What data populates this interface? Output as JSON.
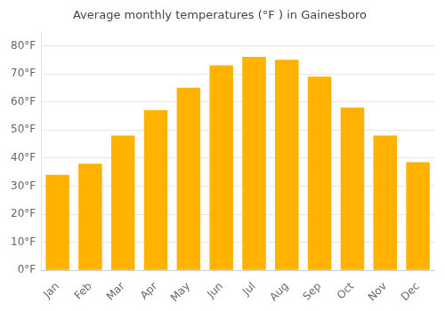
{
  "chart_data": {
    "type": "bar",
    "title": "Average monthly temperatures (°F ) in Gainesboro",
    "categories": [
      "Jan",
      "Feb",
      "Mar",
      "Apr",
      "May",
      "Jun",
      "Jul",
      "Aug",
      "Sep",
      "Oct",
      "Nov",
      "Dec"
    ],
    "values": [
      34,
      38,
      48,
      57,
      65,
      73,
      76,
      75,
      69,
      58,
      48,
      38.5
    ],
    "color": "#FFB300",
    "ylim": [
      0,
      85
    ],
    "yticks": [
      {
        "value": 0,
        "label": "0°F"
      },
      {
        "value": 10,
        "label": "10°F"
      },
      {
        "value": 20,
        "label": "20°F"
      },
      {
        "value": 30,
        "label": "30°F"
      },
      {
        "value": 40,
        "label": "40°F"
      },
      {
        "value": 50,
        "label": "50°F"
      },
      {
        "value": 60,
        "label": "60°F"
      },
      {
        "value": 70,
        "label": "70°F"
      },
      {
        "value": 80,
        "label": "80°F"
      }
    ],
    "grid": true
  }
}
